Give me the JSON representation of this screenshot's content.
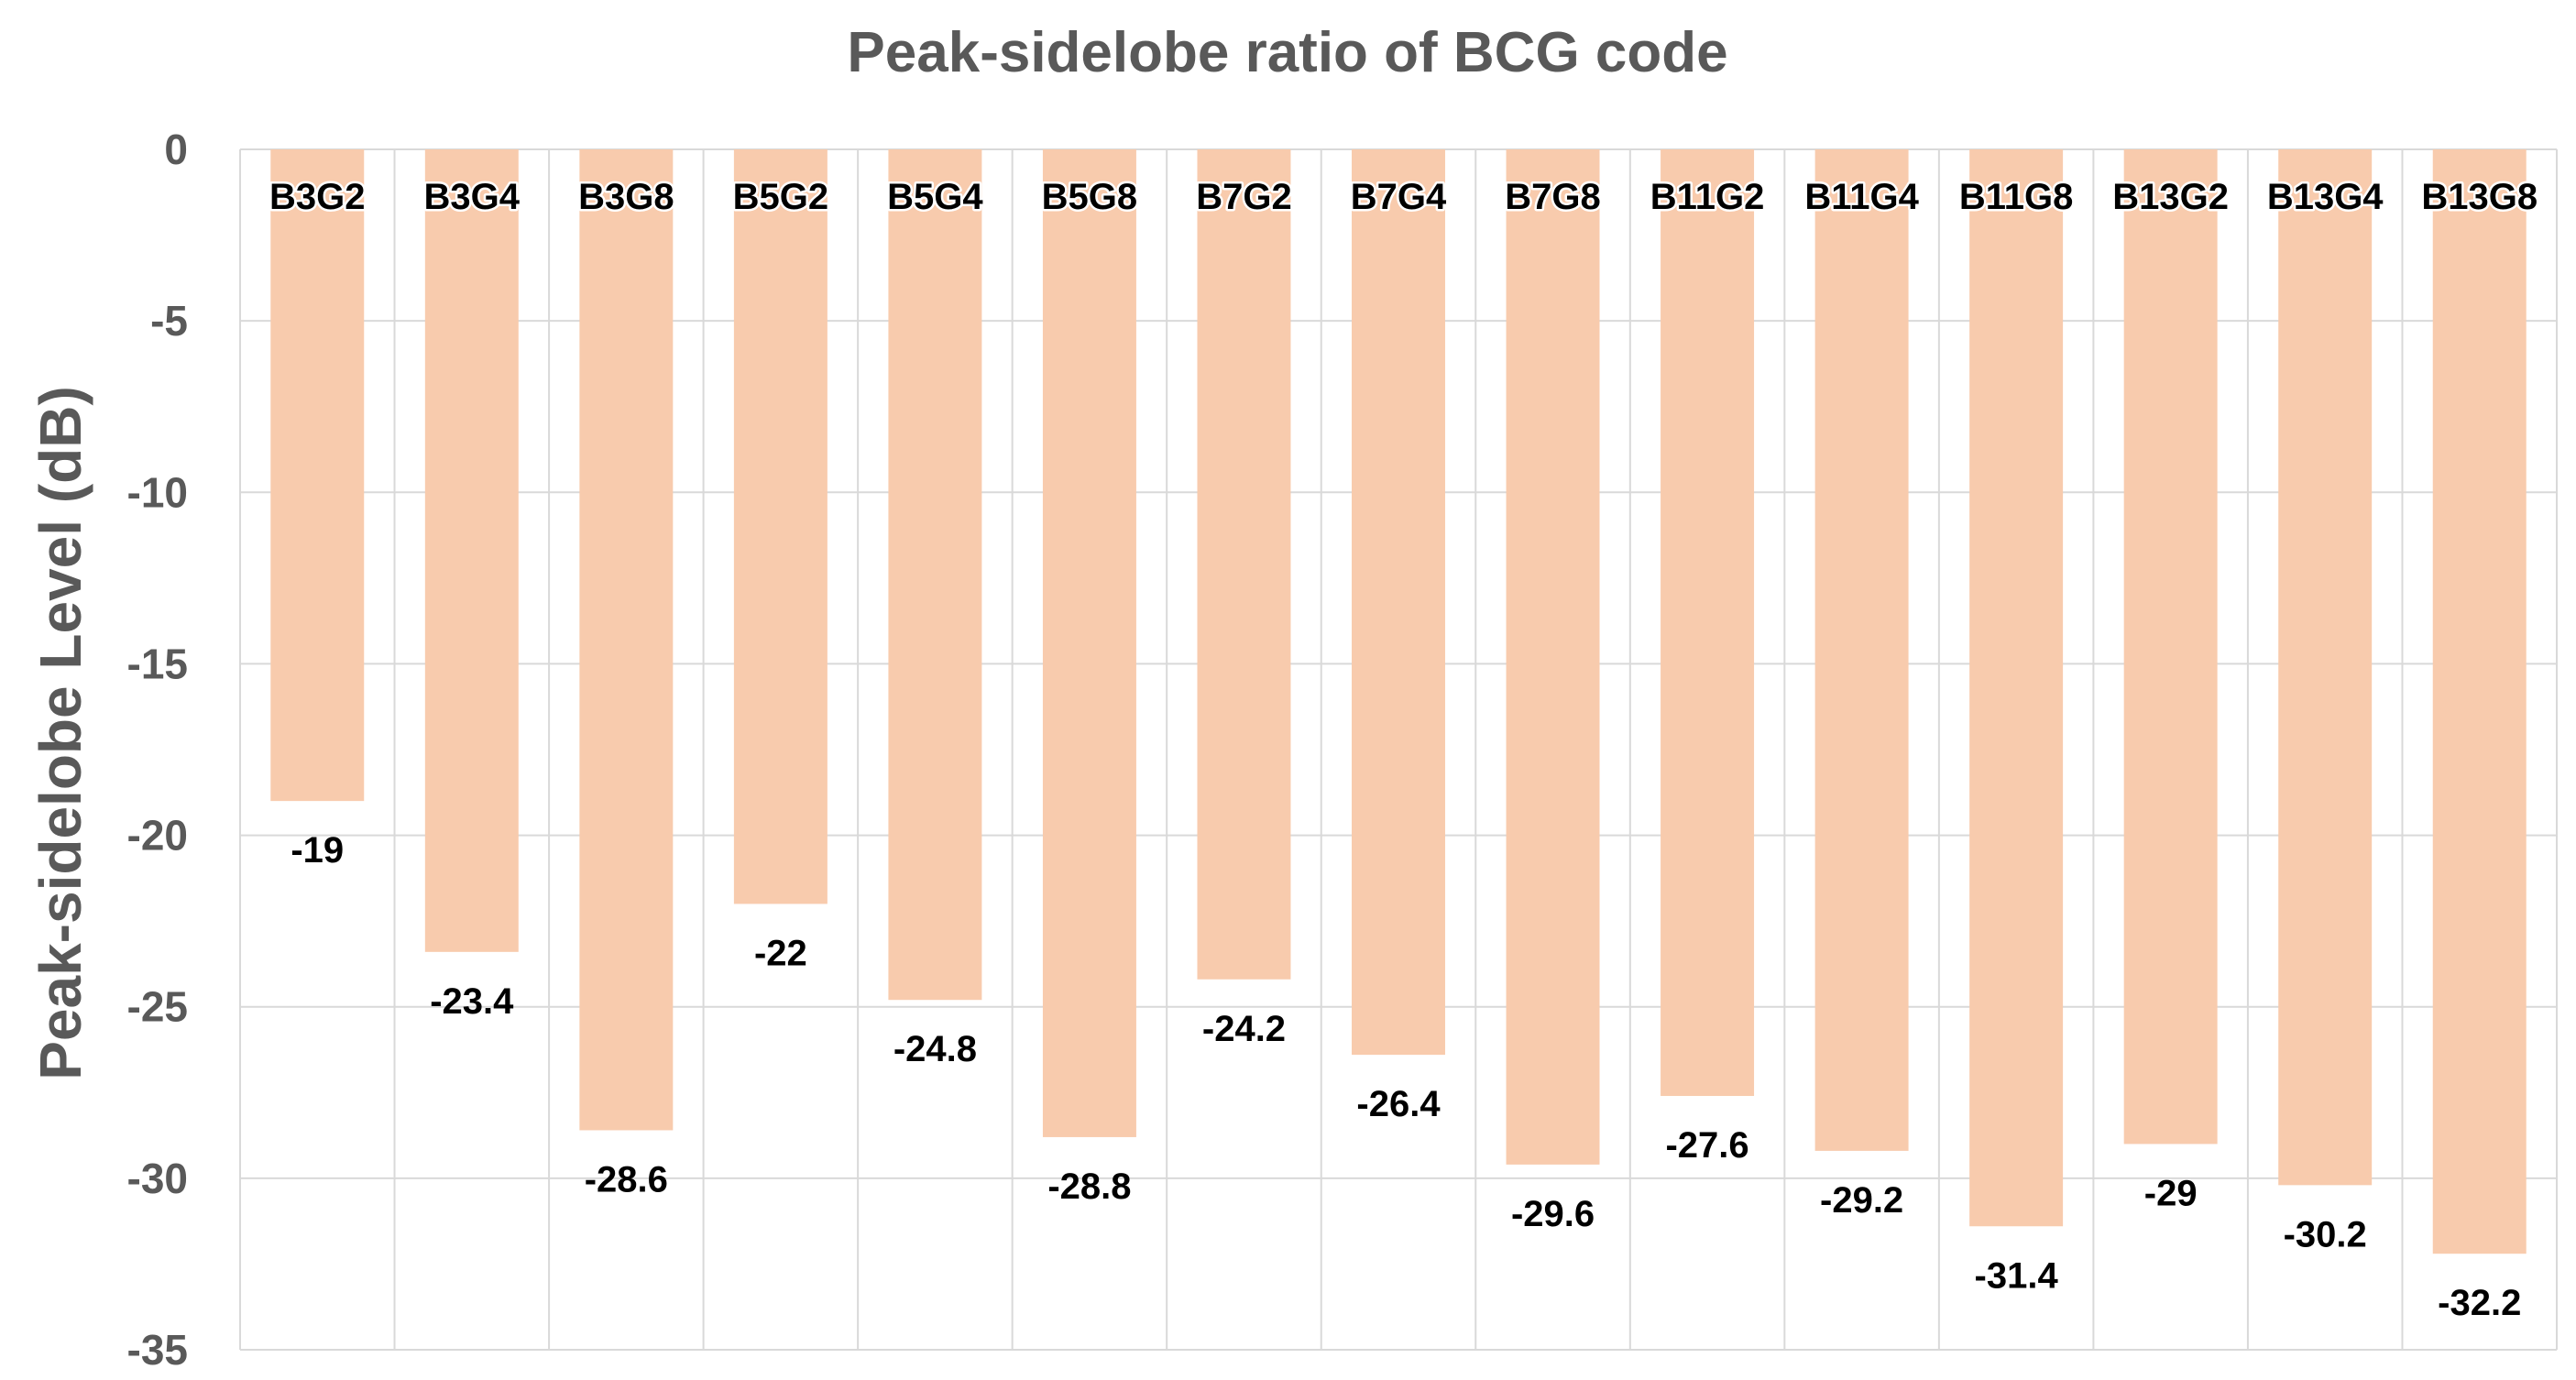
{
  "chart_data": {
    "type": "bar",
    "title": "Peak-sidelobe ratio of BCG code",
    "xlabel": "",
    "ylabel": "Peak-sidelobe Level (dB)",
    "categories": [
      "B3G2",
      "B3G4",
      "B3G8",
      "B5G2",
      "B5G4",
      "B5G8",
      "B7G2",
      "B7G4",
      "B7G8",
      "B11G2",
      "B11G4",
      "B11G8",
      "B13G2",
      "B13G4",
      "B13G8"
    ],
    "values": [
      -19,
      -23.4,
      -28.6,
      -22,
      -24.8,
      -28.8,
      -24.2,
      -26.4,
      -29.6,
      -27.6,
      -29.2,
      -31.4,
      -29,
      -30.2,
      -32.2
    ],
    "ylim": [
      -35,
      0
    ],
    "yticks": [
      0,
      -5,
      -10,
      -15,
      -20,
      -25,
      -30,
      -35
    ],
    "grid": true,
    "legend": "none",
    "category_label_position": "top, inside bars",
    "data_label_position": "below bar end"
  },
  "colors": {
    "bar": "#F8CBAD",
    "grid": "#D9D9D9",
    "axis_text": "#595959",
    "category_text": "#000000",
    "category_outline": "#ffffff",
    "data_label": "#000000"
  }
}
